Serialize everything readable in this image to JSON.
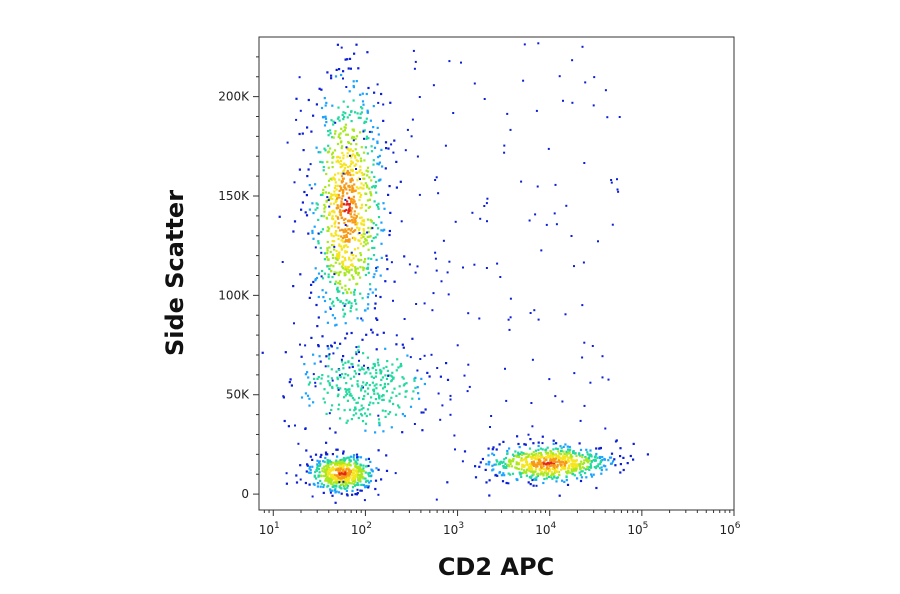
{
  "chart_data": {
    "type": "scatter",
    "title": "",
    "xlabel": "CD2 APC",
    "ylabel": "Side Scatter",
    "x_scale": "log",
    "xlim": [
      7,
      1000000
    ],
    "ylim": [
      -8000,
      230000
    ],
    "x_ticks": [
      {
        "base": "10",
        "exp": "1",
        "value": 10
      },
      {
        "base": "10",
        "exp": "2",
        "value": 100
      },
      {
        "base": "10",
        "exp": "3",
        "value": 1000
      },
      {
        "base": "10",
        "exp": "4",
        "value": 10000
      },
      {
        "base": "10",
        "exp": "5",
        "value": 100000
      },
      {
        "base": "10",
        "exp": "6",
        "value": 1000000
      }
    ],
    "y_ticks": [
      {
        "label": "0",
        "value": 0
      },
      {
        "label": "50K",
        "value": 50000
      },
      {
        "label": "100K",
        "value": 100000
      },
      {
        "label": "150K",
        "value": 150000
      },
      {
        "label": "200K",
        "value": 200000
      }
    ],
    "density_colormap": [
      "#0b1fd6",
      "#1aa3ff",
      "#23d9a0",
      "#a8e81e",
      "#f6e51c",
      "#f79a16",
      "#e3261c"
    ],
    "populations": [
      {
        "name": "",
        "x_center": 55,
        "y_center": 11000,
        "count": 520
      },
      {
        "name": "",
        "x_center": 62,
        "y_center": 145000,
        "count": 950
      },
      {
        "name": "",
        "x_center": 90,
        "y_center": 55000,
        "count": 300
      },
      {
        "name": "",
        "x_center": 9500,
        "y_center": 16000,
        "count": 650
      }
    ],
    "grid": false,
    "legend": "none"
  }
}
